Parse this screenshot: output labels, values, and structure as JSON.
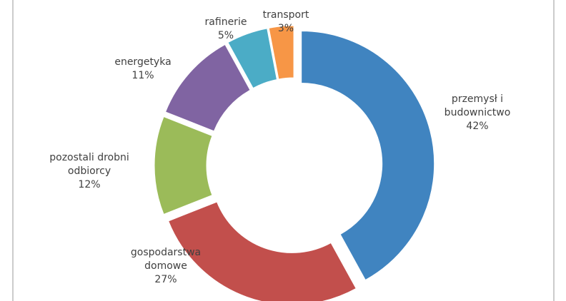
{
  "chart_data": {
    "type": "donut",
    "categories": [
      "przemysł i\nbudownictwo",
      "gospodarstwa\ndomowe",
      "pozostali drobni\nodbiorcy",
      "energetyka",
      "rafinerie",
      "transport"
    ],
    "values": [
      42,
      27,
      12,
      11,
      5,
      3
    ],
    "value_labels": [
      "42%",
      "27%",
      "12%",
      "11%",
      "5%",
      "3%"
    ],
    "colors": [
      "#4084c0",
      "#c24f4c",
      "#9bbb59",
      "#8064a2",
      "#4bacc6",
      "#f79646"
    ]
  }
}
